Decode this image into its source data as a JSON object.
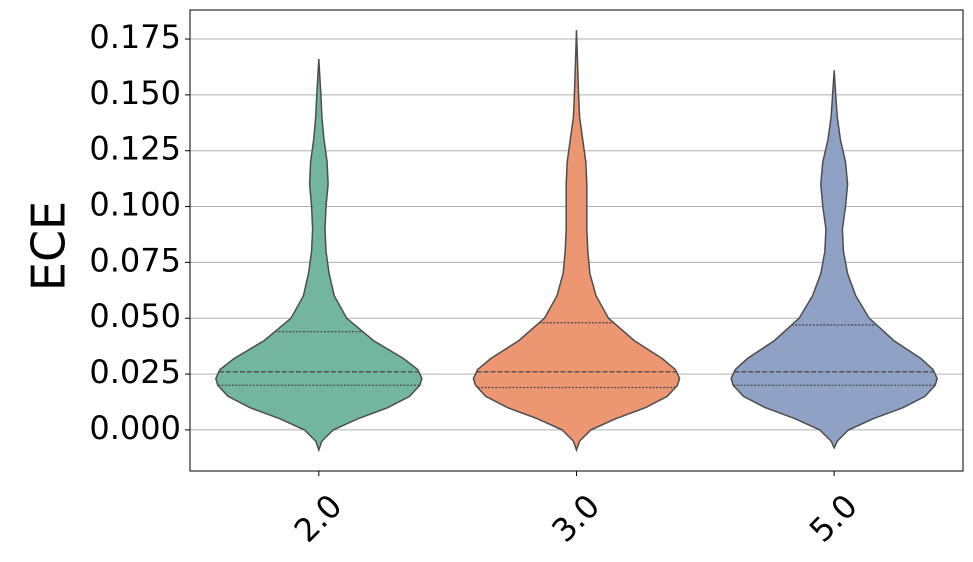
{
  "chart_data": {
    "type": "violin",
    "ylabel": "ECE",
    "categories": [
      "2.0",
      "3.0",
      "5.0"
    ],
    "ylim": [
      -0.0184,
      0.188
    ],
    "yticks": [
      {
        "value": 0,
        "label": "0.000"
      },
      {
        "value": 0.025,
        "label": "0.025"
      },
      {
        "value": 0.05,
        "label": "0.050"
      },
      {
        "value": 0.075,
        "label": "0.075"
      },
      {
        "value": 0.1,
        "label": "0.100"
      },
      {
        "value": 0.125,
        "label": "0.125"
      },
      {
        "value": 0.15,
        "label": "0.150"
      },
      {
        "value": 0.175,
        "label": "0.175"
      }
    ],
    "grid": true,
    "series": [
      {
        "color": "#72b6a0",
        "q1": 0.02,
        "median": 0.026,
        "q3": 0.044,
        "profile": {
          "y": [
            -0.009,
            -0.005,
            0,
            0.005,
            0.01,
            0.015,
            0.02,
            0.023,
            0.027,
            0.032,
            0.04,
            0.05,
            0.06,
            0.07,
            0.08,
            0.09,
            0.1,
            0.11,
            0.12,
            0.13,
            0.14,
            0.15,
            0.166
          ],
          "width": [
            0,
            0.03,
            0.14,
            0.38,
            0.67,
            0.88,
            0.98,
            1,
            0.96,
            0.82,
            0.53,
            0.27,
            0.15,
            0.1,
            0.07,
            0.06,
            0.07,
            0.09,
            0.08,
            0.05,
            0.03,
            0.02,
            0
          ]
        }
      },
      {
        "color": "#ec9672",
        "q1": 0.019,
        "median": 0.026,
        "q3": 0.048,
        "profile": {
          "y": [
            -0.009,
            -0.005,
            0,
            0.005,
            0.01,
            0.015,
            0.02,
            0.023,
            0.027,
            0.032,
            0.04,
            0.05,
            0.06,
            0.07,
            0.08,
            0.09,
            0.1,
            0.11,
            0.12,
            0.13,
            0.14,
            0.15,
            0.165,
            0.179
          ],
          "width": [
            0,
            0.03,
            0.14,
            0.38,
            0.67,
            0.88,
            0.98,
            1,
            0.96,
            0.83,
            0.56,
            0.31,
            0.19,
            0.13,
            0.11,
            0.1,
            0.1,
            0.1,
            0.09,
            0.06,
            0.03,
            0.02,
            0.01,
            0
          ]
        }
      },
      {
        "color": "#8fa2c5",
        "q1": 0.02,
        "median": 0.026,
        "q3": 0.047,
        "profile": {
          "y": [
            -0.008,
            -0.005,
            0,
            0.005,
            0.01,
            0.015,
            0.02,
            0.023,
            0.027,
            0.032,
            0.04,
            0.05,
            0.06,
            0.07,
            0.08,
            0.09,
            0.1,
            0.11,
            0.12,
            0.13,
            0.14,
            0.15,
            0.161
          ],
          "width": [
            0,
            0.03,
            0.14,
            0.38,
            0.67,
            0.88,
            0.98,
            1,
            0.96,
            0.84,
            0.58,
            0.34,
            0.21,
            0.13,
            0.09,
            0.08,
            0.11,
            0.13,
            0.11,
            0.06,
            0.03,
            0.015,
            0
          ]
        }
      }
    ]
  }
}
